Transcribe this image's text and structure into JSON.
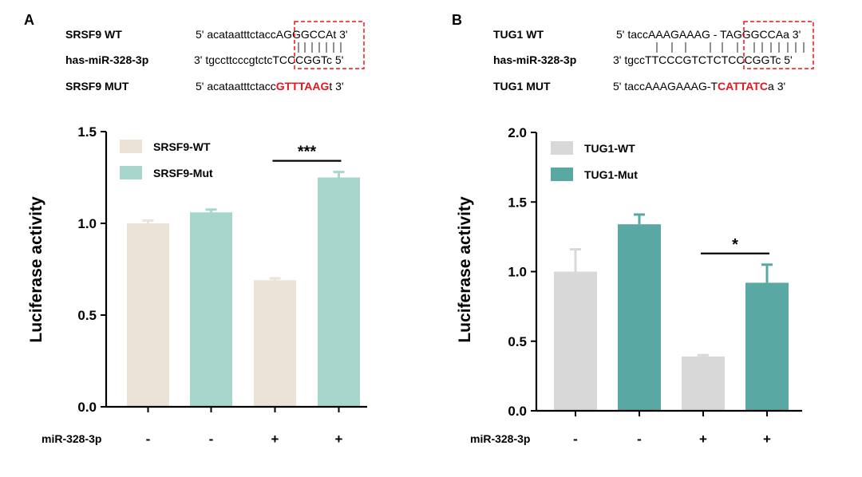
{
  "panels": [
    {
      "letter": "A",
      "sequences": {
        "wt": {
          "label": "SRSF9 WT",
          "prefix": "5' acataatttctacc",
          "core": "AGGGCCA",
          "suffix": "t 3'"
        },
        "mirna": {
          "label": "has-miR-328-3p",
          "prefix": "3' tgccttcccgtctc",
          "core": "TCCCGGT",
          "suffix": "c 5'"
        },
        "mut": {
          "label": "SRSF9 MUT",
          "prefix": "5' acataatttctacc",
          "core": "GTTTAAG",
          "suffix": "t 3'"
        }
      }
    },
    {
      "letter": "B",
      "sequences": {
        "wt": {
          "label": "TUG1 WT",
          "prefix": "5' taccAAAGAAAG - T",
          "core": "AGGGCCA",
          "suffix": "a 3'"
        },
        "mirna": {
          "label": "has-miR-328-3p",
          "prefix": "3' tgccTTCCCGTCTC",
          "core": "TCCCGGT",
          "suffix": "c  5'"
        },
        "mut": {
          "label": "TUG1 MUT",
          "prefix": "5' taccAAAGAAAG-T",
          "core": "CATTATC",
          "suffix": "a 3'"
        }
      }
    }
  ],
  "colors": {
    "srsf9_wt": "#ebe3d6",
    "srsf9_mut": "#a7d6cd",
    "tug1_wt": "#d8d8d8",
    "tug1_mut": "#5aa8a4",
    "highlight_box": "#e8141c",
    "mutation_text": "#e8141c"
  },
  "chart_data": [
    {
      "type": "bar",
      "panel": "A",
      "ylabel": "Luciferase activity",
      "ylim": [
        0,
        1.5
      ],
      "yticks": [
        "0.0",
        "0.5",
        "1.0",
        "1.5"
      ],
      "ytick_values": [
        0,
        0.5,
        1.0,
        1.5
      ],
      "treatment_label": "miR-328-3p",
      "treatment": [
        "-",
        "-",
        "+",
        "+"
      ],
      "legend": [
        "SRSF9-WT",
        "SRSF9-Mut"
      ],
      "bars": [
        {
          "series": "SRSF9-WT",
          "value": 1.0,
          "error": 0.015
        },
        {
          "series": "SRSF9-Mut",
          "value": 1.06,
          "error": 0.015
        },
        {
          "series": "SRSF9-WT",
          "value": 0.69,
          "error": 0.01
        },
        {
          "series": "SRSF9-Mut",
          "value": 1.25,
          "error": 0.03
        }
      ],
      "significance": {
        "label": "***",
        "from": 2,
        "to": 3
      }
    },
    {
      "type": "bar",
      "panel": "B",
      "ylabel": "Luciferase activity",
      "ylim": [
        0,
        2.0
      ],
      "yticks": [
        "0.0",
        "0.5",
        "1.0",
        "1.5",
        "2.0"
      ],
      "ytick_values": [
        0,
        0.5,
        1.0,
        1.5,
        2.0
      ],
      "treatment_label": "miR-328-3p",
      "treatment": [
        "-",
        "-",
        "+",
        "+"
      ],
      "legend": [
        "TUG1-WT",
        "TUG1-Mut"
      ],
      "bars": [
        {
          "series": "TUG1-WT",
          "value": 1.0,
          "error": 0.16
        },
        {
          "series": "TUG1-Mut",
          "value": 1.34,
          "error": 0.07
        },
        {
          "series": "TUG1-WT",
          "value": 0.39,
          "error": 0.01
        },
        {
          "series": "TUG1-Mut",
          "value": 0.92,
          "error": 0.13
        }
      ],
      "significance": {
        "label": "*",
        "from": 2,
        "to": 3
      }
    }
  ]
}
